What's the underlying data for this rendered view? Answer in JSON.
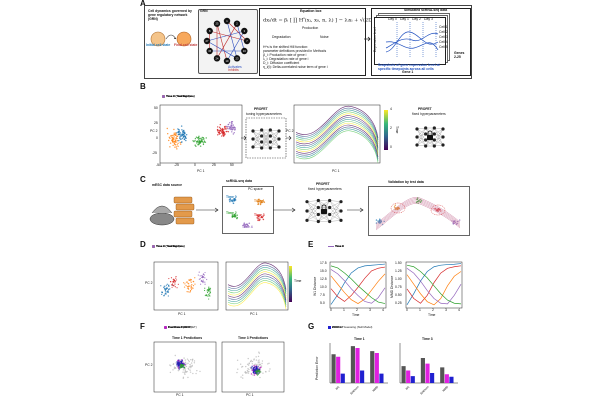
{
  "panels": {
    "a": "A",
    "b": "B",
    "c": "C",
    "d": "D",
    "e": "E",
    "f": "F",
    "g": "G"
  },
  "panelA": {
    "grn_title": "Cell dynamics governed by gene regulatory network (GRN)",
    "grn_box_label": "GRN",
    "initial_state": "Initial cell state",
    "final_state": "Final cell state",
    "activates": "Activates",
    "inhibits": "Inhibits",
    "node_labels": [
      "1",
      "2",
      "3",
      "7",
      "16",
      "23",
      "19",
      "24",
      "15",
      "27",
      "8",
      "25"
    ],
    "equation_title": "Equation box",
    "eq_production": "Production",
    "eq_degradation": "Degradation",
    "eq_noise": "Noise",
    "eq_desc": [
      "H^s is the shifted Hill function:",
      "parameter definitions provided in Methods",
      "β_i: Production rate of gene i",
      "λ_i: Degradation rate of gene i",
      "D_i: Diffusion coefficient",
      "η_i(t): Delta-correlated noise term of gene i"
    ],
    "sim_title": "Simulated scRNA-seq data",
    "day_labels": [
      "Day 0",
      "Day 1",
      "Day 2",
      "Day 3"
    ],
    "cell_labels": [
      "Cell 1",
      "Cell 2",
      "Cell 3",
      "Cell 4",
      "Cell 5"
    ],
    "expr_axis": "Expression level",
    "gene1": "Gene 1",
    "gene_range": "Genes 2-25",
    "snapshot_caption": "Snapshots of gene expression level at specific timepoints across all cells"
  },
  "panelB": {
    "legend": [
      {
        "label": "Time 0 (Training Data)",
        "color": "#1f77b4"
      },
      {
        "label": "Time 1 (Test Data)",
        "color": "#ff7f0e"
      },
      {
        "label": "Time 2 (Training Data)",
        "color": "#2ca02c"
      },
      {
        "label": "Time 3 (Test Data)",
        "color": "#d62728"
      },
      {
        "label": "Time 4 (Training Data)",
        "color": "#9467bd"
      }
    ],
    "xlabel": "PC 1",
    "ylabel": "PC 2",
    "xticks": [
      "-50",
      "-25",
      "0",
      "25",
      "50"
    ],
    "yticks": [
      "50",
      "25",
      "0",
      "-25"
    ],
    "profet1": "PROFET",
    "tuning": "tuning hyperparameters",
    "profet2": "PROFET",
    "fixed": "fixed hyperparameters",
    "colorbar": "Time",
    "colorbar_ticks": [
      "4",
      "2",
      "0"
    ]
  },
  "panelC": {
    "source": "mESC data source",
    "sc_title": "scRNA-seq data",
    "pc_space": "PC space",
    "time_labels": [
      "Time 0",
      "Time 1",
      "Time 2",
      "Time 3",
      "Time 4"
    ],
    "profet": "PROFET",
    "fixed": "fixed hyperparameters",
    "validation": "Validation by test data"
  },
  "panelD": {
    "legend": [
      {
        "label": "Time 0 (Training Data)",
        "color": "#1f77b4"
      },
      {
        "label": "Time 2 (Training Data)",
        "color": "#ff7f0e"
      },
      {
        "label": "Time 4 (Training Data)",
        "color": "#2ca02c"
      },
      {
        "label": "Time 1 (Test Data)",
        "color": "#d62728"
      },
      {
        "label": "Time 3 (Test Data)",
        "color": "#9467bd"
      }
    ],
    "xlabel": "PC 1",
    "ylabel": "PC 2",
    "colorbar": "Time"
  },
  "panelE": {
    "legend": [
      {
        "label": "Time 0",
        "color": "#1f77b4"
      },
      {
        "label": "Time 2",
        "color": "#ff7f0e"
      },
      {
        "label": "Time 4",
        "color": "#2ca02c"
      },
      {
        "label": "Time 1",
        "color": "#d62728"
      },
      {
        "label": "Time 3",
        "color": "#9467bd"
      }
    ],
    "left_ylabel": "W1 Distance",
    "right_ylabel": "MMD Distance",
    "xlabel": "Time",
    "left_yticks": [
      "17.5",
      "15.0",
      "12.5",
      "10.0",
      "7.5",
      "5.0"
    ],
    "right_yticks": [
      "1.50",
      "1.25",
      "1.00",
      "0.75",
      "0.50",
      "0.25"
    ],
    "xticks": [
      "0",
      "1",
      "2",
      "3",
      "4"
    ]
  },
  "panelF": {
    "legend": [
      {
        "label": "Test Data Time 1",
        "color": "#777777"
      },
      {
        "label": "Test Data Time 3",
        "color": "#bbbbbb"
      },
      {
        "label": "Predictions (PROFET)",
        "color": "#1f1fb4"
      },
      {
        "label": "Predictions (WOT)",
        "color": "#c020c0"
      }
    ],
    "left_title": "Time 1 Predictions",
    "right_title": "Time 3 Predictions",
    "xlabel": "PC 1",
    "ylabel": "PC 2"
  },
  "panelG": {
    "legend": [
      {
        "label": "Random Guessing (Null Model)",
        "color": "#555555"
      },
      {
        "label": "WOT",
        "color": "#e020e0"
      },
      {
        "label": "PROFET",
        "color": "#2020d0"
      }
    ],
    "left_title": "Time 1",
    "right_title": "Time 3",
    "ylabel": "Prediction Error",
    "metrics": [
      "W1",
      "Sinkhorn",
      "MMD"
    ]
  },
  "chart_data": [
    {
      "type": "line",
      "title": "",
      "xlabel": "Time",
      "ylabel": "W1 Distance",
      "x": [
        0,
        0.5,
        1,
        1.5,
        2,
        2.5,
        3,
        3.5,
        4
      ],
      "ylim": [
        3,
        18.5
      ],
      "series": [
        {
          "name": "Time 0",
          "values": [
            4.2,
            7.5,
            11.5,
            14.8,
            16.5,
            17.2,
            17.4,
            17.6,
            17.8
          ]
        },
        {
          "name": "Time 1",
          "values": [
            9.5,
            6.8,
            5.2,
            7.2,
            10.0,
            13.0,
            15.5,
            16.4,
            16.8
          ]
        },
        {
          "name": "Time 2",
          "values": [
            13.8,
            11.0,
            8.2,
            5.8,
            4.5,
            6.0,
            9.0,
            12.0,
            14.5
          ]
        },
        {
          "name": "Time 3",
          "values": [
            16.0,
            14.5,
            12.2,
            9.5,
            7.2,
            5.2,
            4.6,
            6.5,
            9.8
          ]
        },
        {
          "name": "Time 4",
          "values": [
            17.2,
            16.5,
            14.8,
            12.8,
            10.5,
            8.5,
            6.5,
            5.0,
            4.5
          ]
        }
      ]
    },
    {
      "type": "line",
      "title": "",
      "xlabel": "Time",
      "ylabel": "MMD Distance",
      "x": [
        0,
        0.5,
        1,
        1.5,
        2,
        2.5,
        3,
        3.5,
        4
      ],
      "ylim": [
        0.15,
        1.6
      ],
      "series": [
        {
          "name": "Time 0",
          "values": [
            0.25,
            0.6,
            1.0,
            1.3,
            1.45,
            1.5,
            1.52,
            1.53,
            1.55
          ]
        },
        {
          "name": "Time 1",
          "values": [
            0.75,
            0.45,
            0.3,
            0.55,
            0.95,
            1.25,
            1.4,
            1.45,
            1.48
          ]
        },
        {
          "name": "Time 2",
          "values": [
            1.2,
            0.9,
            0.6,
            0.35,
            0.25,
            0.45,
            0.85,
            1.15,
            1.3
          ]
        },
        {
          "name": "Time 3",
          "values": [
            1.4,
            1.25,
            1.0,
            0.7,
            0.45,
            0.3,
            0.28,
            0.55,
            0.9
          ]
        },
        {
          "name": "Time 4",
          "values": [
            1.5,
            1.45,
            1.3,
            1.1,
            0.85,
            0.6,
            0.4,
            0.3,
            0.28
          ]
        }
      ]
    },
    {
      "type": "bar",
      "title": "Time 1",
      "ylabel": "Prediction Error",
      "categories": [
        "W1",
        "Sinkhorn",
        "MMD"
      ],
      "ylim": [
        0,
        3.2
      ],
      "series": [
        {
          "name": "Random Guessing (Null Model)",
          "values": [
            2.3,
            2.95,
            2.55
          ]
        },
        {
          "name": "WOT",
          "values": [
            2.1,
            2.8,
            2.4
          ]
        },
        {
          "name": "PROFET",
          "values": [
            0.75,
            1.0,
            0.75
          ]
        }
      ]
    },
    {
      "type": "bar",
      "title": "Time 3",
      "ylabel": "Prediction Error",
      "categories": [
        "W1",
        "Sinkhorn",
        "MMD"
      ],
      "ylim": [
        0,
        3.2
      ],
      "series": [
        {
          "name": "Random Guessing (Null Model)",
          "values": [
            1.35,
            2.0,
            1.25
          ]
        },
        {
          "name": "WOT",
          "values": [
            1.0,
            1.55,
            0.7
          ]
        },
        {
          "name": "PROFET",
          "values": [
            0.55,
            0.8,
            0.5
          ]
        }
      ]
    }
  ]
}
